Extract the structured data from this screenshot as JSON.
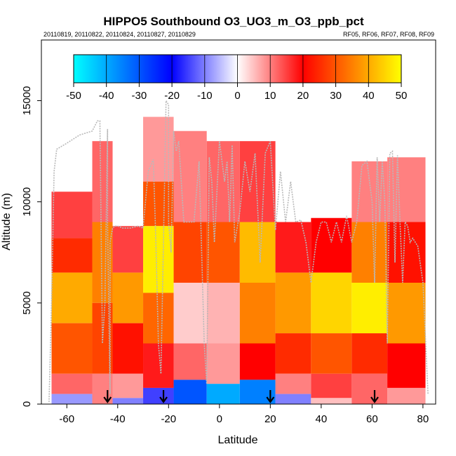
{
  "chart_data": {
    "type": "heatmap",
    "title": "HIPPO5 Southbound O3_UO3_m_O3_ppb_pct",
    "subtitle_left": "20110819, 20110822, 20110824, 20110827, 20110829",
    "subtitle_right": "RF05, RF06, RF07, RF08, RF09",
    "xlabel": "Latitude",
    "ylabel": "Altitude (m)",
    "xlim": [
      -70,
      85
    ],
    "ylim": [
      0,
      18000
    ],
    "xticks": [
      -60,
      -40,
      -20,
      0,
      20,
      40,
      60,
      80
    ],
    "yticks": [
      0,
      5000,
      10000,
      15000
    ],
    "grid": false,
    "colorbar": {
      "min": -50,
      "max": 50,
      "ticks": [
        -50,
        -40,
        -30,
        -20,
        -10,
        0,
        10,
        20,
        30,
        40,
        50
      ],
      "colors": {
        "low": "#00ffff",
        "low_mid": "#0000ff",
        "zero": "#ffffff",
        "high_mid": "#ff0000",
        "high": "#ffff00"
      }
    },
    "markers": {
      "type": "down-arrow",
      "latitudes": [
        -44,
        -22,
        20,
        61
      ]
    },
    "flight_track": {
      "latitude": [
        -67,
        -66,
        -65,
        -64,
        -60,
        -55,
        -50,
        -48,
        -47,
        -46,
        -45,
        -44,
        -44,
        -43,
        -43,
        -42,
        -41,
        -40,
        -38,
        -35,
        -32,
        -30,
        -28,
        -26,
        -25,
        -24,
        -23,
        -22,
        -21,
        -20,
        -20,
        -19,
        -18,
        -17,
        -16,
        -15,
        -14,
        -12,
        -10,
        -8,
        -6,
        -5,
        -4,
        -3,
        -2,
        0,
        2,
        3,
        4,
        5,
        6,
        8,
        10,
        12,
        14,
        16,
        18,
        20,
        22,
        24,
        26,
        28,
        30,
        32,
        34,
        36,
        38,
        40,
        42,
        44,
        46,
        48,
        50,
        52,
        54,
        56,
        58,
        60,
        61,
        62,
        63,
        64,
        65,
        66,
        67,
        68,
        69,
        70,
        71,
        72,
        73,
        74,
        75,
        76,
        78,
        80,
        82
      ],
      "altitude": [
        100,
        5000,
        11500,
        12600,
        12900,
        13300,
        13500,
        14000,
        14000,
        3000,
        5000,
        13600,
        9000,
        500,
        8000,
        8700,
        8800,
        8800,
        8700,
        8700,
        8800,
        8700,
        11500,
        12100,
        8000,
        3000,
        1500,
        8000,
        15000,
        14800,
        9000,
        7500,
        13500,
        12500,
        13000,
        11000,
        9000,
        9000,
        9000,
        12000,
        3000,
        1000,
        12200,
        11000,
        8000,
        13000,
        11000,
        12000,
        9000,
        12800,
        8000,
        9500,
        12000,
        10500,
        12400,
        7000,
        12400,
        13000,
        8600,
        11500,
        9000,
        11000,
        9000,
        9100,
        8000,
        6000,
        8000,
        9000,
        9000,
        8000,
        9000,
        8000,
        9300,
        8000,
        9000,
        11800,
        12000,
        10000,
        6000,
        12200,
        9000,
        12000,
        10000,
        3000,
        12400,
        12500,
        7000,
        12300,
        9000,
        6000,
        9000,
        8800,
        8000,
        8200,
        7800,
        6000,
        500
      ]
    },
    "cells": [
      {
        "lat_min": -66,
        "lat_max": -50,
        "alt_min": 8200,
        "alt_max": 10500,
        "value": 15
      },
      {
        "lat_min": -66,
        "lat_max": -50,
        "alt_min": 6500,
        "alt_max": 8200,
        "value": 25
      },
      {
        "lat_min": -66,
        "lat_max": -50,
        "alt_min": 4000,
        "alt_max": 6500,
        "value": 40
      },
      {
        "lat_min": -66,
        "lat_max": -50,
        "alt_min": 1500,
        "alt_max": 4000,
        "value": 30
      },
      {
        "lat_min": -66,
        "lat_max": -50,
        "alt_min": 500,
        "alt_max": 1500,
        "value": 12
      },
      {
        "lat_min": -66,
        "lat_max": -50,
        "alt_min": 0,
        "alt_max": 500,
        "value": -8
      },
      {
        "lat_min": -50,
        "lat_max": -42,
        "alt_min": 9000,
        "alt_max": 13000,
        "value": 12
      },
      {
        "lat_min": -50,
        "lat_max": -42,
        "alt_min": 5000,
        "alt_max": 9000,
        "value": 35
      },
      {
        "lat_min": -50,
        "lat_max": -42,
        "alt_min": 1500,
        "alt_max": 5000,
        "value": 28
      },
      {
        "lat_min": -50,
        "lat_max": -42,
        "alt_min": 0,
        "alt_max": 1500,
        "value": 10
      },
      {
        "lat_min": -42,
        "lat_max": -30,
        "alt_min": 6500,
        "alt_max": 8800,
        "value": 15
      },
      {
        "lat_min": -42,
        "lat_max": -30,
        "alt_min": 4000,
        "alt_max": 6500,
        "value": 38
      },
      {
        "lat_min": -42,
        "lat_max": -30,
        "alt_min": 1500,
        "alt_max": 4000,
        "value": 22
      },
      {
        "lat_min": -42,
        "lat_max": -30,
        "alt_min": 300,
        "alt_max": 1500,
        "value": 8
      },
      {
        "lat_min": -42,
        "lat_max": -30,
        "alt_min": 0,
        "alt_max": 300,
        "value": -10
      },
      {
        "lat_min": -30,
        "lat_max": -18,
        "alt_min": 11000,
        "alt_max": 14200,
        "value": 8
      },
      {
        "lat_min": -30,
        "lat_max": -18,
        "alt_min": 8800,
        "alt_max": 11000,
        "value": 30
      },
      {
        "lat_min": -30,
        "lat_max": -18,
        "alt_min": 5500,
        "alt_max": 8800,
        "value": 48
      },
      {
        "lat_min": -30,
        "lat_max": -18,
        "alt_min": 3000,
        "alt_max": 5500,
        "value": 32
      },
      {
        "lat_min": -30,
        "lat_max": -18,
        "alt_min": 800,
        "alt_max": 3000,
        "value": 18
      },
      {
        "lat_min": -30,
        "lat_max": -18,
        "alt_min": 0,
        "alt_max": 800,
        "value": -15
      },
      {
        "lat_min": -18,
        "lat_max": -5,
        "alt_min": 9000,
        "alt_max": 13500,
        "value": 10
      },
      {
        "lat_min": -18,
        "lat_max": -5,
        "alt_min": 6000,
        "alt_max": 9000,
        "value": 28
      },
      {
        "lat_min": -18,
        "lat_max": -5,
        "alt_min": 3000,
        "alt_max": 6000,
        "value": 4
      },
      {
        "lat_min": -18,
        "lat_max": -5,
        "alt_min": 1200,
        "alt_max": 3000,
        "value": 12
      },
      {
        "lat_min": -18,
        "lat_max": -5,
        "alt_min": 0,
        "alt_max": 1200,
        "value": -30
      },
      {
        "lat_min": -5,
        "lat_max": 8,
        "alt_min": 9000,
        "alt_max": 13000,
        "value": 12
      },
      {
        "lat_min": -5,
        "lat_max": 8,
        "alt_min": 6000,
        "alt_max": 9000,
        "value": 30
      },
      {
        "lat_min": -5,
        "lat_max": 8,
        "alt_min": 3000,
        "alt_max": 6000,
        "value": 6
      },
      {
        "lat_min": -5,
        "lat_max": 8,
        "alt_min": 1000,
        "alt_max": 3000,
        "value": 8
      },
      {
        "lat_min": -5,
        "lat_max": 8,
        "alt_min": 0,
        "alt_max": 1000,
        "value": -40
      },
      {
        "lat_min": 8,
        "lat_max": 22,
        "alt_min": 9000,
        "alt_max": 13000,
        "value": 15
      },
      {
        "lat_min": 8,
        "lat_max": 22,
        "alt_min": 6000,
        "alt_max": 9000,
        "value": 42
      },
      {
        "lat_min": 8,
        "lat_max": 22,
        "alt_min": 3000,
        "alt_max": 6000,
        "value": 35
      },
      {
        "lat_min": 8,
        "lat_max": 22,
        "alt_min": 1200,
        "alt_max": 3000,
        "value": 20
      },
      {
        "lat_min": 8,
        "lat_max": 22,
        "alt_min": 0,
        "alt_max": 1200,
        "value": -35
      },
      {
        "lat_min": 22,
        "lat_max": 36,
        "alt_min": 6500,
        "alt_max": 9000,
        "value": 18
      },
      {
        "lat_min": 22,
        "lat_max": 36,
        "alt_min": 3500,
        "alt_max": 6500,
        "value": 38
      },
      {
        "lat_min": 22,
        "lat_max": 36,
        "alt_min": 1500,
        "alt_max": 3500,
        "value": 25
      },
      {
        "lat_min": 22,
        "lat_max": 36,
        "alt_min": 500,
        "alt_max": 1500,
        "value": 10
      },
      {
        "lat_min": 22,
        "lat_max": 36,
        "alt_min": 0,
        "alt_max": 500,
        "value": -10
      },
      {
        "lat_min": 36,
        "lat_max": 52,
        "alt_min": 6500,
        "alt_max": 9200,
        "value": 20
      },
      {
        "lat_min": 36,
        "lat_max": 52,
        "alt_min": 3500,
        "alt_max": 6500,
        "value": 45
      },
      {
        "lat_min": 36,
        "lat_max": 52,
        "alt_min": 1500,
        "alt_max": 3500,
        "value": 30
      },
      {
        "lat_min": 36,
        "lat_max": 52,
        "alt_min": 300,
        "alt_max": 1500,
        "value": 15
      },
      {
        "lat_min": 36,
        "lat_max": 52,
        "alt_min": 0,
        "alt_max": 300,
        "value": 5
      },
      {
        "lat_min": 52,
        "lat_max": 66,
        "alt_min": 9000,
        "alt_max": 12000,
        "value": 10
      },
      {
        "lat_min": 52,
        "lat_max": 66,
        "alt_min": 6000,
        "alt_max": 9000,
        "value": 35
      },
      {
        "lat_min": 52,
        "lat_max": 66,
        "alt_min": 3500,
        "alt_max": 6000,
        "value": 48
      },
      {
        "lat_min": 52,
        "lat_max": 66,
        "alt_min": 1500,
        "alt_max": 3500,
        "value": 25
      },
      {
        "lat_min": 52,
        "lat_max": 66,
        "alt_min": 0,
        "alt_max": 1500,
        "value": 12
      },
      {
        "lat_min": 66,
        "lat_max": 81,
        "alt_min": 9000,
        "alt_max": 12200,
        "value": 10
      },
      {
        "lat_min": 66,
        "lat_max": 81,
        "alt_min": 6000,
        "alt_max": 9000,
        "value": 22
      },
      {
        "lat_min": 66,
        "lat_max": 81,
        "alt_min": 3000,
        "alt_max": 6000,
        "value": 38
      },
      {
        "lat_min": 66,
        "lat_max": 81,
        "alt_min": 800,
        "alt_max": 3000,
        "value": 20
      },
      {
        "lat_min": 66,
        "lat_max": 81,
        "alt_min": 0,
        "alt_max": 800,
        "value": 8
      }
    ]
  }
}
